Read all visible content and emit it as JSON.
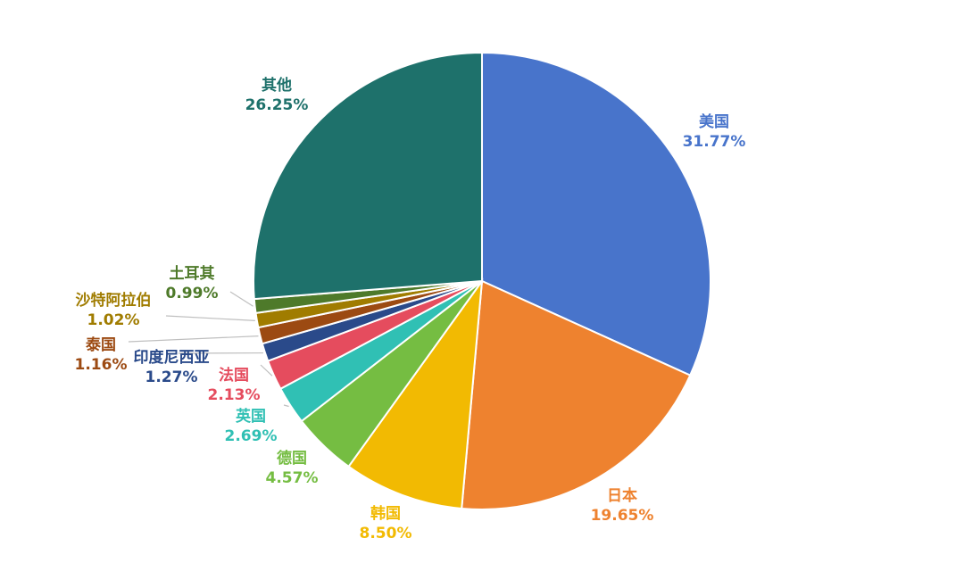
{
  "chart_data": {
    "type": "pie",
    "title": "",
    "start_angle_deg": 0,
    "direction": "clockwise",
    "slices": [
      {
        "label": "美国",
        "value": 31.77,
        "value_text": "31.77%",
        "color": "#4874CB"
      },
      {
        "label": "日本",
        "value": 19.65,
        "value_text": "19.65%",
        "color": "#EE822F"
      },
      {
        "label": "韩国",
        "value": 8.5,
        "value_text": "8.50%",
        "color": "#F2BA02"
      },
      {
        "label": "德国",
        "value": 4.57,
        "value_text": "4.57%",
        "color": "#75BD42"
      },
      {
        "label": "英国",
        "value": 2.69,
        "value_text": "2.69%",
        "color": "#30C0B4"
      },
      {
        "label": "法国",
        "value": 2.13,
        "value_text": "2.13%",
        "color": "#E54C5E"
      },
      {
        "label": "印度尼西亚",
        "value": 1.27,
        "value_text": "1.27%",
        "color": "#2A4A8A"
      },
      {
        "label": "泰国",
        "value": 1.16,
        "value_text": "1.16%",
        "color": "#9C4A12"
      },
      {
        "label": "沙特阿拉伯",
        "value": 1.02,
        "value_text": "1.02%",
        "color": "#A07C00"
      },
      {
        "label": "土耳其",
        "value": 0.99,
        "value_text": "0.99%",
        "color": "#4E7A2A"
      },
      {
        "label": "其他",
        "value": 26.25,
        "value_text": "26.25%",
        "color": "#1E716B"
      }
    ]
  }
}
